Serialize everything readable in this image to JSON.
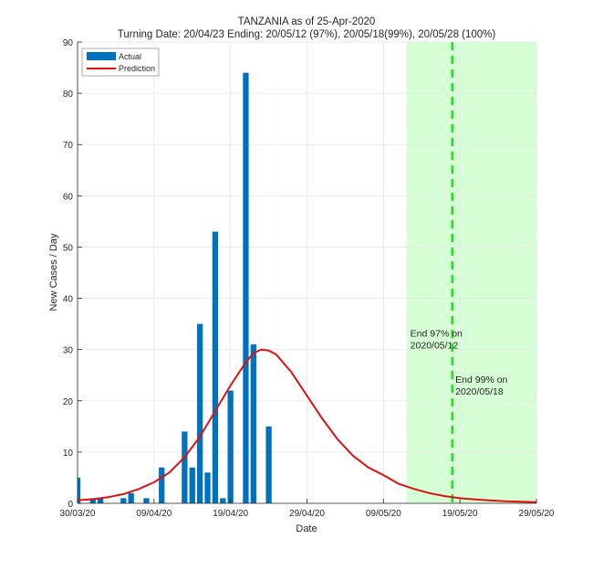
{
  "chart_data": {
    "type": "bar",
    "title": "TANZANIA as of 25-Apr-2020",
    "subtitle": "Turning Date: 20/04/23  Ending: 20/05/12 (97%), 20/05/18(99%), 20/05/28 (100%)",
    "xlabel": "Date",
    "ylabel": "New Cases / Day",
    "xlim_days": [
      0,
      60
    ],
    "x_origin_date": "30/03/20",
    "ylim": [
      0,
      90
    ],
    "grid": true,
    "legend_placement": "top-left",
    "x_ticks": [
      {
        "day": 0,
        "label": "30/03/20"
      },
      {
        "day": 10,
        "label": "09/04/20"
      },
      {
        "day": 20,
        "label": "19/04/20"
      },
      {
        "day": 30,
        "label": "29/04/20"
      },
      {
        "day": 40,
        "label": "09/05/20"
      },
      {
        "day": 50,
        "label": "19/05/20"
      },
      {
        "day": 60,
        "label": "29/05/20"
      }
    ],
    "y_ticks": [
      0,
      10,
      20,
      30,
      40,
      50,
      60,
      70,
      80,
      90
    ],
    "series": [
      {
        "name": "Actual",
        "type": "bar",
        "color": "#0072BD",
        "points": [
          [
            0,
            5
          ],
          [
            2,
            1
          ],
          [
            3,
            1
          ],
          [
            6,
            1
          ],
          [
            7,
            2
          ],
          [
            9,
            1
          ],
          [
            11,
            7
          ],
          [
            14,
            14
          ],
          [
            15,
            7
          ],
          [
            16,
            35
          ],
          [
            17,
            6
          ],
          [
            18,
            53
          ],
          [
            19,
            1
          ],
          [
            20,
            22
          ],
          [
            22,
            84
          ],
          [
            23,
            31
          ],
          [
            25,
            15
          ]
        ]
      },
      {
        "name": "Prediction",
        "type": "line",
        "color": "#E01010",
        "points": [
          [
            0,
            0.6
          ],
          [
            2,
            0.8
          ],
          [
            4,
            1.2
          ],
          [
            6,
            1.8
          ],
          [
            8,
            2.8
          ],
          [
            10,
            4.1
          ],
          [
            12,
            6
          ],
          [
            14,
            9
          ],
          [
            16,
            13
          ],
          [
            18,
            18
          ],
          [
            20,
            23
          ],
          [
            22,
            27.5
          ],
          [
            23,
            29.3
          ],
          [
            24,
            30
          ],
          [
            25,
            29.8
          ],
          [
            26,
            29
          ],
          [
            28,
            25.5
          ],
          [
            30,
            21
          ],
          [
            32,
            16.5
          ],
          [
            34,
            12.5
          ],
          [
            36,
            9.3
          ],
          [
            38,
            7
          ],
          [
            40,
            5.5
          ],
          [
            42,
            3.8
          ],
          [
            44,
            2.8
          ],
          [
            46,
            2.0
          ],
          [
            48,
            1.4
          ],
          [
            50,
            1.0
          ],
          [
            52,
            0.75
          ],
          [
            54,
            0.55
          ],
          [
            56,
            0.4
          ],
          [
            58,
            0.3
          ],
          [
            60,
            0.22
          ]
        ]
      }
    ],
    "shaded_region": {
      "from_day": 43,
      "to_day": 60,
      "color": "#D6FFD6"
    },
    "vline": {
      "day": 49,
      "color": "#22DD22"
    },
    "annotations": [
      {
        "day": 43.5,
        "value": 32.5,
        "lines": [
          "End 97% on",
          "2020/05/12"
        ]
      },
      {
        "day": 49.4,
        "value": 23.5,
        "lines": [
          "End 99% on",
          "2020/05/18"
        ]
      }
    ]
  }
}
